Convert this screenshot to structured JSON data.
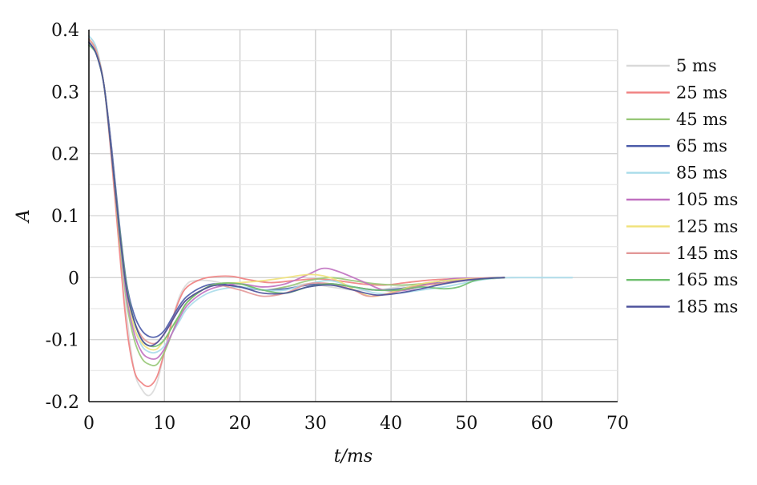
{
  "chart_data": {
    "type": "line",
    "xlabel": "t/ms",
    "ylabel": "A",
    "xlim": [
      0,
      70
    ],
    "ylim": [
      -0.2,
      0.4
    ],
    "xticks": [
      "0",
      "10",
      "20",
      "30",
      "40",
      "50",
      "60",
      "70"
    ],
    "yticks": [
      "0.4",
      "0.3",
      "0.2",
      "0.1",
      "0",
      "-0.1",
      "-0.2"
    ],
    "grid": true,
    "legend_position": "right",
    "series": [
      {
        "name": "5 ms",
        "color": "#d9d9d9",
        "points": [
          [
            0,
            0.39
          ],
          [
            1,
            0.37
          ],
          [
            2,
            0.31
          ],
          [
            3,
            0.2
          ],
          [
            4,
            0.07
          ],
          [
            5,
            -0.06
          ],
          [
            6,
            -0.15
          ],
          [
            7,
            -0.18
          ],
          [
            8,
            -0.19
          ],
          [
            9,
            -0.17
          ],
          [
            10,
            -0.12
          ],
          [
            11,
            -0.07
          ],
          [
            12,
            -0.03
          ],
          [
            13,
            -0.01
          ],
          [
            14,
            -0.005
          ],
          [
            16,
            -0.005
          ],
          [
            18,
            -0.01
          ],
          [
            20,
            -0.015
          ],
          [
            23,
            -0.02
          ],
          [
            26,
            -0.015
          ],
          [
            29,
            -0.01
          ],
          [
            32,
            -0.015
          ],
          [
            35,
            -0.02
          ],
          [
            38,
            -0.02
          ],
          [
            41,
            -0.015
          ],
          [
            44,
            -0.01
          ],
          [
            47,
            -0.01
          ],
          [
            50,
            -0.005
          ],
          [
            53,
            0
          ],
          [
            56,
            0
          ],
          [
            60,
            0
          ],
          [
            64,
            0
          ]
        ]
      },
      {
        "name": "25 ms",
        "color": "#f08080",
        "points": [
          [
            0,
            0.385
          ],
          [
            1,
            0.365
          ],
          [
            2,
            0.31
          ],
          [
            3,
            0.19
          ],
          [
            4,
            0.05
          ],
          [
            5,
            -0.08
          ],
          [
            6,
            -0.15
          ],
          [
            7,
            -0.17
          ],
          [
            8,
            -0.175
          ],
          [
            9,
            -0.16
          ],
          [
            10,
            -0.12
          ],
          [
            11,
            -0.07
          ],
          [
            12,
            -0.035
          ],
          [
            13,
            -0.015
          ],
          [
            15,
            -0.002
          ],
          [
            17,
            0.002
          ],
          [
            19,
            0.002
          ],
          [
            21,
            -0.003
          ],
          [
            24,
            -0.008
          ],
          [
            27,
            -0.005
          ],
          [
            30,
            -0.002
          ],
          [
            33,
            -0.005
          ],
          [
            36,
            -0.01
          ],
          [
            39,
            -0.012
          ],
          [
            42,
            -0.008
          ],
          [
            45,
            -0.004
          ],
          [
            48,
            -0.002
          ],
          [
            51,
            -0.001
          ],
          [
            55,
            0
          ]
        ]
      },
      {
        "name": "45 ms",
        "color": "#98c878",
        "points": [
          [
            0,
            0.38
          ],
          [
            1,
            0.36
          ],
          [
            2,
            0.31
          ],
          [
            3,
            0.2
          ],
          [
            4,
            0.07
          ],
          [
            5,
            -0.04
          ],
          [
            6,
            -0.1
          ],
          [
            7,
            -0.13
          ],
          [
            8,
            -0.14
          ],
          [
            9,
            -0.14
          ],
          [
            10,
            -0.12
          ],
          [
            11,
            -0.09
          ],
          [
            12,
            -0.06
          ],
          [
            13,
            -0.04
          ],
          [
            15,
            -0.02
          ],
          [
            17,
            -0.01
          ],
          [
            20,
            -0.01
          ],
          [
            23,
            -0.02
          ],
          [
            26,
            -0.015
          ],
          [
            29,
            -0.005
          ],
          [
            32,
            0
          ],
          [
            35,
            -0.005
          ],
          [
            38,
            -0.01
          ],
          [
            41,
            -0.012
          ],
          [
            44,
            -0.01
          ],
          [
            47,
            -0.005
          ],
          [
            50,
            -0.004
          ],
          [
            53,
            -0.002
          ],
          [
            55,
            0
          ]
        ]
      },
      {
        "name": "65 ms",
        "color": "#4a5aa8",
        "points": [
          [
            0,
            0.38
          ],
          [
            1,
            0.36
          ],
          [
            2,
            0.31
          ],
          [
            3,
            0.21
          ],
          [
            4,
            0.09
          ],
          [
            5,
            -0.01
          ],
          [
            6,
            -0.06
          ],
          [
            7,
            -0.085
          ],
          [
            8,
            -0.095
          ],
          [
            9,
            -0.095
          ],
          [
            10,
            -0.085
          ],
          [
            11,
            -0.065
          ],
          [
            12,
            -0.045
          ],
          [
            13,
            -0.03
          ],
          [
            15,
            -0.015
          ],
          [
            17,
            -0.01
          ],
          [
            20,
            -0.015
          ],
          [
            23,
            -0.02
          ],
          [
            26,
            -0.018
          ],
          [
            29,
            -0.012
          ],
          [
            32,
            -0.01
          ],
          [
            35,
            -0.015
          ],
          [
            38,
            -0.02
          ],
          [
            41,
            -0.018
          ],
          [
            44,
            -0.012
          ],
          [
            47,
            -0.008
          ],
          [
            50,
            -0.004
          ],
          [
            53,
            -0.001
          ],
          [
            55,
            0
          ]
        ]
      },
      {
        "name": "85 ms",
        "color": "#a8dcea",
        "points": [
          [
            0,
            0.39
          ],
          [
            1,
            0.37
          ],
          [
            2,
            0.31
          ],
          [
            3,
            0.2
          ],
          [
            4,
            0.08
          ],
          [
            5,
            -0.03
          ],
          [
            6,
            -0.08
          ],
          [
            7,
            -0.11
          ],
          [
            8,
            -0.12
          ],
          [
            9,
            -0.12
          ],
          [
            10,
            -0.11
          ],
          [
            11,
            -0.09
          ],
          [
            12,
            -0.07
          ],
          [
            13,
            -0.05
          ],
          [
            15,
            -0.03
          ],
          [
            17,
            -0.02
          ],
          [
            20,
            -0.015
          ],
          [
            23,
            -0.02
          ],
          [
            26,
            -0.02
          ],
          [
            29,
            -0.01
          ],
          [
            32,
            -0.005
          ],
          [
            35,
            -0.015
          ],
          [
            38,
            -0.025
          ],
          [
            41,
            -0.025
          ],
          [
            44,
            -0.02
          ],
          [
            47,
            -0.015
          ],
          [
            50,
            -0.008
          ],
          [
            53,
            -0.002
          ],
          [
            56,
            0
          ],
          [
            60,
            0
          ],
          [
            64,
            0
          ]
        ]
      },
      {
        "name": "105 ms",
        "color": "#c070c0",
        "points": [
          [
            0,
            0.385
          ],
          [
            1,
            0.365
          ],
          [
            2,
            0.31
          ],
          [
            3,
            0.2
          ],
          [
            4,
            0.08
          ],
          [
            5,
            -0.03
          ],
          [
            6,
            -0.09
          ],
          [
            7,
            -0.12
          ],
          [
            8,
            -0.13
          ],
          [
            9,
            -0.13
          ],
          [
            10,
            -0.115
          ],
          [
            11,
            -0.09
          ],
          [
            12,
            -0.065
          ],
          [
            13,
            -0.045
          ],
          [
            15,
            -0.025
          ],
          [
            17,
            -0.015
          ],
          [
            20,
            -0.01
          ],
          [
            23,
            -0.015
          ],
          [
            26,
            -0.01
          ],
          [
            29,
            0.005
          ],
          [
            31,
            0.015
          ],
          [
            33,
            0.01
          ],
          [
            36,
            -0.005
          ],
          [
            39,
            -0.02
          ],
          [
            42,
            -0.02
          ],
          [
            45,
            -0.01
          ],
          [
            48,
            -0.002
          ],
          [
            51,
            -0.001
          ],
          [
            55,
            0
          ]
        ]
      },
      {
        "name": "125 ms",
        "color": "#f0e27a",
        "points": [
          [
            0,
            0.385
          ],
          [
            1,
            0.365
          ],
          [
            2,
            0.31
          ],
          [
            3,
            0.2
          ],
          [
            4,
            0.08
          ],
          [
            5,
            -0.02
          ],
          [
            6,
            -0.08
          ],
          [
            7,
            -0.105
          ],
          [
            8,
            -0.115
          ],
          [
            9,
            -0.115
          ],
          [
            10,
            -0.1
          ],
          [
            11,
            -0.08
          ],
          [
            12,
            -0.06
          ],
          [
            13,
            -0.04
          ],
          [
            15,
            -0.02
          ],
          [
            17,
            -0.01
          ],
          [
            20,
            -0.008
          ],
          [
            23,
            -0.005
          ],
          [
            26,
            0
          ],
          [
            29,
            0.005
          ],
          [
            31,
            0.003
          ],
          [
            33,
            -0.005
          ],
          [
            36,
            -0.025
          ],
          [
            38,
            -0.03
          ],
          [
            41,
            -0.02
          ],
          [
            44,
            -0.01
          ],
          [
            47,
            -0.005
          ],
          [
            50,
            -0.002
          ],
          [
            55,
            0
          ]
        ]
      },
      {
        "name": "145 ms",
        "color": "#e39898",
        "points": [
          [
            0,
            0.385
          ],
          [
            1,
            0.365
          ],
          [
            2,
            0.31
          ],
          [
            3,
            0.2
          ],
          [
            4,
            0.08
          ],
          [
            5,
            -0.02
          ],
          [
            6,
            -0.07
          ],
          [
            7,
            -0.095
          ],
          [
            8,
            -0.105
          ],
          [
            9,
            -0.105
          ],
          [
            10,
            -0.09
          ],
          [
            11,
            -0.07
          ],
          [
            12,
            -0.05
          ],
          [
            13,
            -0.035
          ],
          [
            15,
            -0.02
          ],
          [
            17,
            -0.012
          ],
          [
            20,
            -0.02
          ],
          [
            23,
            -0.03
          ],
          [
            26,
            -0.025
          ],
          [
            29,
            -0.01
          ],
          [
            32,
            -0.01
          ],
          [
            35,
            -0.02
          ],
          [
            37,
            -0.03
          ],
          [
            40,
            -0.025
          ],
          [
            43,
            -0.015
          ],
          [
            46,
            -0.01
          ],
          [
            49,
            -0.005
          ],
          [
            52,
            -0.001
          ],
          [
            55,
            0
          ]
        ]
      },
      {
        "name": "165 ms",
        "color": "#6fbf6f",
        "points": [
          [
            0,
            0.375
          ],
          [
            1,
            0.36
          ],
          [
            2,
            0.31
          ],
          [
            3,
            0.2
          ],
          [
            4,
            0.085
          ],
          [
            5,
            -0.015
          ],
          [
            6,
            -0.07
          ],
          [
            7,
            -0.1
          ],
          [
            8,
            -0.11
          ],
          [
            9,
            -0.11
          ],
          [
            10,
            -0.1
          ],
          [
            11,
            -0.08
          ],
          [
            12,
            -0.06
          ],
          [
            13,
            -0.04
          ],
          [
            15,
            -0.02
          ],
          [
            17,
            -0.01
          ],
          [
            20,
            -0.01
          ],
          [
            23,
            -0.02
          ],
          [
            26,
            -0.025
          ],
          [
            29,
            -0.015
          ],
          [
            32,
            -0.01
          ],
          [
            35,
            -0.015
          ],
          [
            38,
            -0.02
          ],
          [
            41,
            -0.02
          ],
          [
            44,
            -0.015
          ],
          [
            47,
            -0.018
          ],
          [
            49,
            -0.015
          ],
          [
            51,
            -0.005
          ],
          [
            53,
            -0.001
          ],
          [
            55,
            0
          ]
        ]
      },
      {
        "name": "185 ms",
        "color": "#4a4f9a",
        "points": [
          [
            0,
            0.38
          ],
          [
            1,
            0.36
          ],
          [
            2,
            0.31
          ],
          [
            3,
            0.2
          ],
          [
            4,
            0.08
          ],
          [
            5,
            -0.02
          ],
          [
            6,
            -0.07
          ],
          [
            7,
            -0.1
          ],
          [
            8,
            -0.11
          ],
          [
            9,
            -0.105
          ],
          [
            10,
            -0.09
          ],
          [
            11,
            -0.07
          ],
          [
            12,
            -0.05
          ],
          [
            13,
            -0.035
          ],
          [
            15,
            -0.02
          ],
          [
            17,
            -0.012
          ],
          [
            20,
            -0.015
          ],
          [
            23,
            -0.025
          ],
          [
            26,
            -0.025
          ],
          [
            29,
            -0.015
          ],
          [
            32,
            -0.012
          ],
          [
            35,
            -0.02
          ],
          [
            38,
            -0.028
          ],
          [
            41,
            -0.025
          ],
          [
            44,
            -0.018
          ],
          [
            47,
            -0.01
          ],
          [
            50,
            -0.004
          ],
          [
            53,
            -0.001
          ],
          [
            55,
            0
          ]
        ]
      }
    ]
  }
}
